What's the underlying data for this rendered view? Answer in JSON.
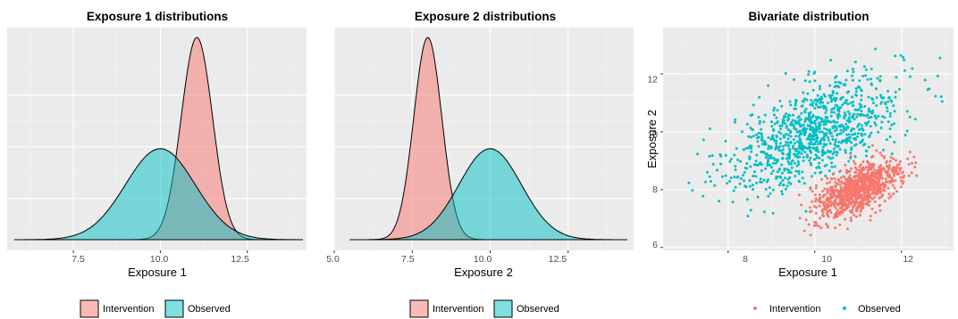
{
  "colors": {
    "intervention_fill": "#F8766D",
    "observed_fill": "#00BFC4",
    "panel_background": "#EBEBEB",
    "grid_major": "#FFFFFF",
    "grid_minor": "#F5F5F5"
  },
  "chart_data": [
    {
      "type": "area",
      "title": "Exposure 1 distributions",
      "xlabel": "Exposure 1",
      "ylabel": "",
      "xlim": [
        5.6,
        14.2
      ],
      "ylim": [
        0,
        1.0
      ],
      "x_ticks": [
        7.5,
        10.0,
        12.5
      ],
      "x_tick_labels": [
        "7.5",
        "10.0",
        "12.5"
      ],
      "y_ticks_shown": false,
      "series": [
        {
          "name": "Intervention",
          "color": "#F8766D",
          "distribution": "normal",
          "mean": 11.05,
          "sd": 0.45,
          "xrange": [
            8.9,
            13.0
          ]
        },
        {
          "name": "Observed",
          "color": "#00BFC4",
          "distribution": "normal",
          "mean": 10.0,
          "sd": 1.0,
          "xrange": [
            5.8,
            14.1
          ]
        }
      ],
      "legend": {
        "position": "bottom",
        "entries": [
          "Intervention",
          "Observed"
        ]
      },
      "grid": true
    },
    {
      "type": "area",
      "title": "Exposure 2 distributions",
      "xlabel": "Exposure 2",
      "ylabel": "",
      "xlim": [
        5.0,
        14.6
      ],
      "ylim": [
        0,
        1.0
      ],
      "x_ticks": [
        5.0,
        7.5,
        10.0,
        12.5
      ],
      "x_tick_labels": [
        "5.0",
        "7.5",
        "10.0",
        "12.5"
      ],
      "y_ticks_shown": false,
      "series": [
        {
          "name": "Intervention",
          "color": "#F8766D",
          "distribution": "normal",
          "mean": 8.0,
          "sd": 0.45,
          "xrange": [
            5.9,
            10.1
          ]
        },
        {
          "name": "Observed",
          "color": "#00BFC4",
          "distribution": "normal",
          "mean": 10.0,
          "sd": 1.0,
          "xrange": [
            5.5,
            14.4
          ]
        }
      ],
      "legend": {
        "position": "bottom",
        "entries": [
          "Intervention",
          "Observed"
        ]
      },
      "grid": true
    },
    {
      "type": "scatter",
      "title": "Bivariate distribution",
      "xlabel": "Exposure 1",
      "ylabel": "Exposure 2",
      "xlim": [
        6.5,
        13.2
      ],
      "ylim": [
        5.9,
        13.6
      ],
      "x_ticks": [
        8,
        10,
        12
      ],
      "x_tick_labels": [
        "8",
        "10",
        "12"
      ],
      "y_ticks": [
        6,
        8,
        10,
        12
      ],
      "y_tick_labels": [
        "6",
        "8",
        "10",
        "12"
      ],
      "series": [
        {
          "name": "Intervention",
          "color": "#F8766D",
          "n": 900,
          "mean": [
            11.0,
            8.0
          ],
          "sd": [
            0.5,
            0.5
          ],
          "correlation": 0.6,
          "range_x": [
            9.5,
            12.5
          ],
          "range_y": [
            6.2,
            9.6
          ]
        },
        {
          "name": "Observed",
          "color": "#00BFC4",
          "n": 1000,
          "mean": [
            10.0,
            10.0
          ],
          "sd": [
            1.0,
            1.0
          ],
          "correlation": 0.6,
          "range_x": [
            6.6,
            13.1
          ],
          "range_y": [
            6.3,
            13.5
          ]
        }
      ],
      "legend": {
        "position": "bottom",
        "entries": [
          "Intervention",
          "Observed"
        ]
      },
      "grid": true
    }
  ]
}
